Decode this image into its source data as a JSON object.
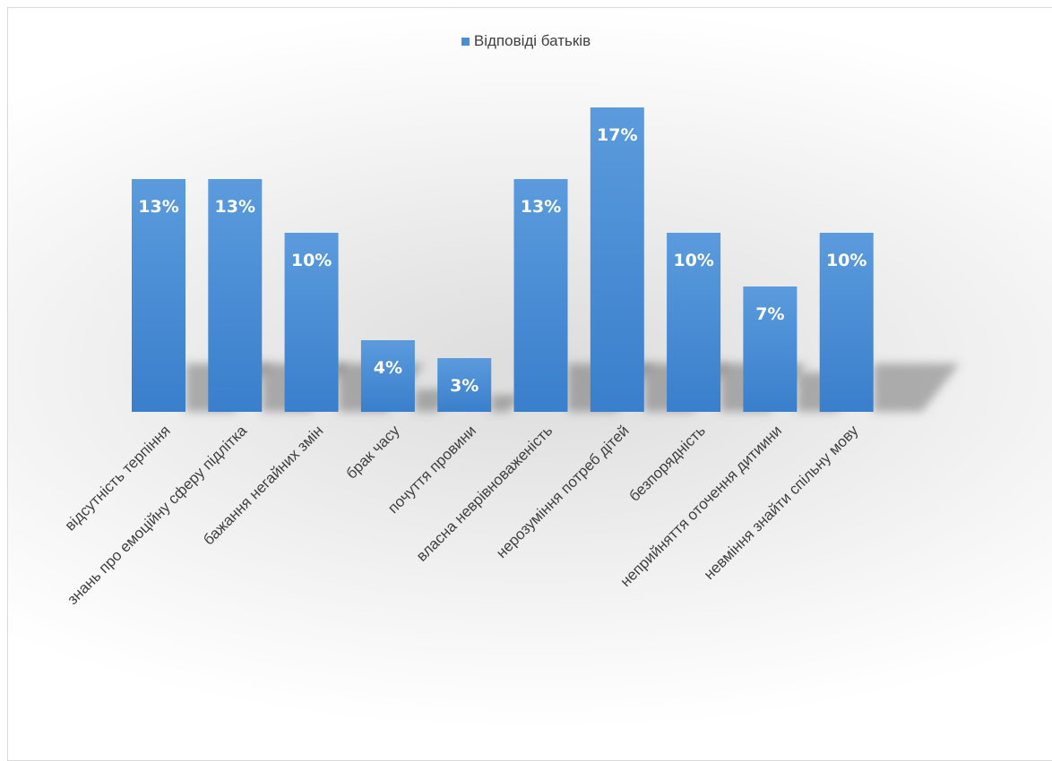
{
  "chart_data": {
    "type": "bar",
    "legend": [
      "Відповіді батьків"
    ],
    "legend_position": "top",
    "series": [
      {
        "name": "Відповіді батьків",
        "values": [
          13,
          13,
          10,
          4,
          3,
          13,
          17,
          10,
          7,
          10
        ],
        "data_labels": [
          "13%",
          "13%",
          "10%",
          "4%",
          "3%",
          "13%",
          "17%",
          "10%",
          "7%",
          "10%"
        ]
      }
    ],
    "categories": [
      "відсутність терпіння",
      "знань про емоційну сферу підлітка",
      "бажання негайних змін",
      "брак часу",
      "почуття провини",
      "власна неврівноваженість",
      "нерозуміння потреб дітей",
      "безпорядність",
      "неприйняття оточення дитиини",
      "невміння знайти спільну мову"
    ],
    "ylim": [
      0,
      17
    ],
    "grid": false,
    "bar_color": "#4a8fd6",
    "bar_color_top": "#5b9bdd",
    "bar_color_bottom": "#3a7fcc"
  }
}
